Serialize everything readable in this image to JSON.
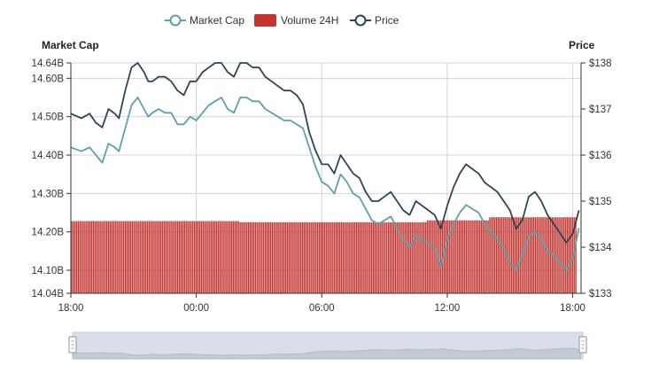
{
  "chart_data": {
    "type": "line",
    "legend": {
      "placement": "top-center",
      "items": [
        {
          "name": "Market Cap",
          "color": "#5ea1a7",
          "marker": "circle-line"
        },
        {
          "name": "Volume 24H",
          "color": "#c23531",
          "marker": "rect"
        },
        {
          "name": "Price",
          "color": "#2f4554",
          "marker": "circle-line"
        }
      ]
    },
    "axes": {
      "left": {
        "title": "Market Cap",
        "min": 14.04,
        "max": 14.64,
        "ticks": [
          14.04,
          14.1,
          14.2,
          14.3,
          14.4,
          14.5,
          14.6,
          14.64
        ],
        "tick_labels": [
          "14.04B",
          "14.10B",
          "14.20B",
          "14.30B",
          "14.40B",
          "14.50B",
          "14.60B",
          "14.64B"
        ]
      },
      "right": {
        "title": "Price",
        "min": 133,
        "max": 138,
        "ticks": [
          133,
          134,
          135,
          136,
          137,
          138
        ],
        "tick_labels": [
          "$133",
          "$134",
          "$135",
          "$136",
          "$137",
          "$138"
        ]
      },
      "x": {
        "min": 0,
        "max": 24.4,
        "ticks": [
          0,
          6,
          12,
          18,
          24
        ],
        "tick_labels": [
          "18:00",
          "00:00",
          "06:00",
          "12:00",
          "18:00"
        ]
      }
    },
    "grid": true,
    "series": [
      {
        "name": "Market Cap",
        "axis": "left",
        "color": "#5ea1a7",
        "x": [
          0,
          0.5,
          0.9,
          1.2,
          1.5,
          1.8,
          2.1,
          2.3,
          2.6,
          2.9,
          3.2,
          3.5,
          3.7,
          3.9,
          4.2,
          4.5,
          4.8,
          5.1,
          5.4,
          5.7,
          6.0,
          6.3,
          6.6,
          6.9,
          7.2,
          7.5,
          7.8,
          8.1,
          8.4,
          8.7,
          9.0,
          9.3,
          9.6,
          9.9,
          10.2,
          10.5,
          10.8,
          11.1,
          11.4,
          11.7,
          12.0,
          12.3,
          12.6,
          12.9,
          13.2,
          13.5,
          13.8,
          14.1,
          14.4,
          14.7,
          15.0,
          15.3,
          15.6,
          15.9,
          16.2,
          16.5,
          16.8,
          17.1,
          17.4,
          17.7,
          18.0,
          18.3,
          18.6,
          18.9,
          19.2,
          19.5,
          19.8,
          20.1,
          20.4,
          20.7,
          21.0,
          21.3,
          21.6,
          21.9,
          22.2,
          22.5,
          22.8,
          23.1,
          23.4,
          23.7,
          24.0,
          24.3
        ],
        "values": [
          14.42,
          14.41,
          14.42,
          14.4,
          14.38,
          14.43,
          14.42,
          14.41,
          14.47,
          14.53,
          14.55,
          14.52,
          14.5,
          14.51,
          14.52,
          14.51,
          14.51,
          14.48,
          14.48,
          14.5,
          14.49,
          14.51,
          14.53,
          14.54,
          14.55,
          14.52,
          14.51,
          14.55,
          14.55,
          14.54,
          14.54,
          14.52,
          14.51,
          14.5,
          14.49,
          14.49,
          14.48,
          14.47,
          14.42,
          14.37,
          14.33,
          14.32,
          14.3,
          14.35,
          14.33,
          14.3,
          14.29,
          14.26,
          14.23,
          14.22,
          14.23,
          14.24,
          14.21,
          14.18,
          14.16,
          14.19,
          14.18,
          14.17,
          14.16,
          14.11,
          14.18,
          14.22,
          14.25,
          14.27,
          14.26,
          14.25,
          14.22,
          14.2,
          14.18,
          14.16,
          14.12,
          14.1,
          14.14,
          14.19,
          14.2,
          14.18,
          14.15,
          14.14,
          14.12,
          14.1,
          14.13,
          14.21
        ]
      },
      {
        "name": "Price",
        "axis": "right",
        "color": "#2f4554",
        "x": [
          0,
          0.5,
          0.9,
          1.2,
          1.5,
          1.8,
          2.1,
          2.3,
          2.6,
          2.9,
          3.2,
          3.5,
          3.7,
          3.9,
          4.2,
          4.5,
          4.8,
          5.1,
          5.4,
          5.7,
          6.0,
          6.3,
          6.6,
          6.9,
          7.2,
          7.5,
          7.8,
          8.1,
          8.4,
          8.7,
          9.0,
          9.3,
          9.6,
          9.9,
          10.2,
          10.5,
          10.8,
          11.1,
          11.4,
          11.7,
          12.0,
          12.3,
          12.6,
          12.9,
          13.2,
          13.5,
          13.8,
          14.1,
          14.4,
          14.7,
          15.0,
          15.3,
          15.6,
          15.9,
          16.2,
          16.5,
          16.8,
          17.1,
          17.4,
          17.7,
          18.0,
          18.3,
          18.6,
          18.9,
          19.2,
          19.5,
          19.8,
          20.1,
          20.4,
          20.7,
          21.0,
          21.3,
          21.6,
          21.9,
          22.2,
          22.5,
          22.8,
          23.1,
          23.4,
          23.7,
          24.0,
          24.3
        ],
        "values": [
          136.9,
          136.8,
          136.9,
          136.7,
          136.6,
          137.0,
          136.9,
          136.8,
          137.4,
          137.9,
          138.1,
          137.8,
          137.6,
          137.6,
          137.7,
          137.7,
          137.6,
          137.4,
          137.3,
          137.6,
          137.6,
          137.8,
          137.9,
          138.0,
          138.1,
          137.8,
          137.7,
          138.1,
          138.0,
          137.9,
          137.9,
          137.7,
          137.6,
          137.5,
          137.4,
          137.4,
          137.3,
          137.1,
          136.5,
          136.1,
          135.8,
          135.8,
          135.6,
          136.0,
          135.8,
          135.6,
          135.5,
          135.2,
          135.0,
          135.0,
          135.1,
          135.2,
          135.0,
          134.8,
          134.7,
          135.0,
          134.9,
          134.8,
          134.7,
          134.4,
          134.9,
          135.3,
          135.6,
          135.8,
          135.7,
          135.6,
          135.4,
          135.3,
          135.2,
          135.0,
          134.8,
          134.4,
          134.6,
          135.1,
          135.2,
          135.0,
          134.7,
          134.5,
          134.3,
          134.1,
          134.3,
          134.8
        ]
      },
      {
        "name": "Volume 24H",
        "axis": "left",
        "type": "bar",
        "color": "#c23531",
        "x_range": [
          0,
          24.2
        ],
        "bar_count": 300,
        "values_segments": [
          {
            "from": 0,
            "to": 8,
            "value": 14.228
          },
          {
            "from": 8,
            "to": 17,
            "value": 14.225
          },
          {
            "from": 17,
            "to": 20,
            "value": 14.23
          },
          {
            "from": 20,
            "to": 24.2,
            "value": 14.238
          }
        ]
      }
    ],
    "data_zoom": {
      "start": 0,
      "end": 100
    }
  }
}
